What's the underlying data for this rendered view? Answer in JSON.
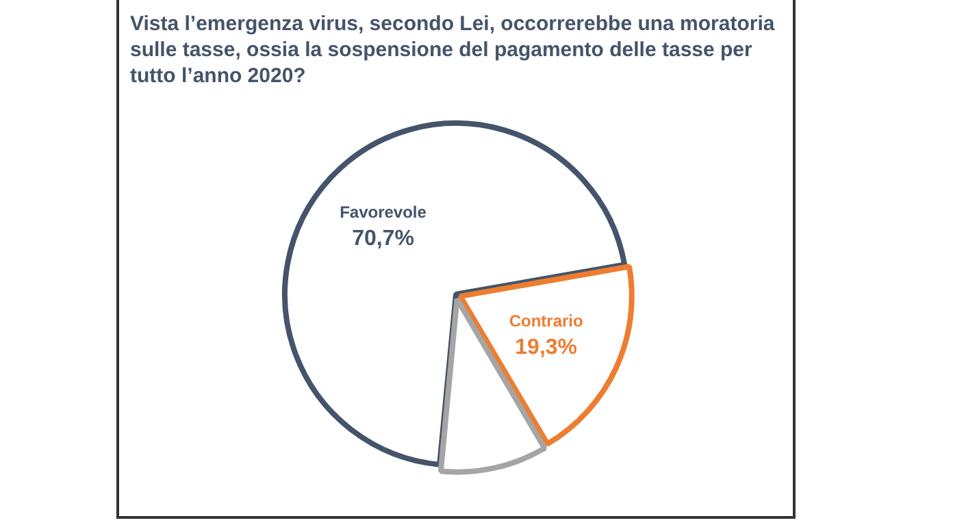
{
  "chart_data": {
    "type": "pie",
    "title": "Vista l’emergenza virus, secondo Lei, occorrerebbe una moratoria sulle tasse, ossia la sospensione del pagamento delle tasse per tutto l’anno 2020?",
    "categories": [
      "Favorevole",
      "Contrario",
      null
    ],
    "values": [
      70.7,
      19.3,
      10.0
    ],
    "colors": [
      "#44546a",
      "#ed7d31",
      "#a5a5a5"
    ],
    "value_labels": [
      "70,7%",
      "19,3%",
      null
    ],
    "legend": false
  }
}
